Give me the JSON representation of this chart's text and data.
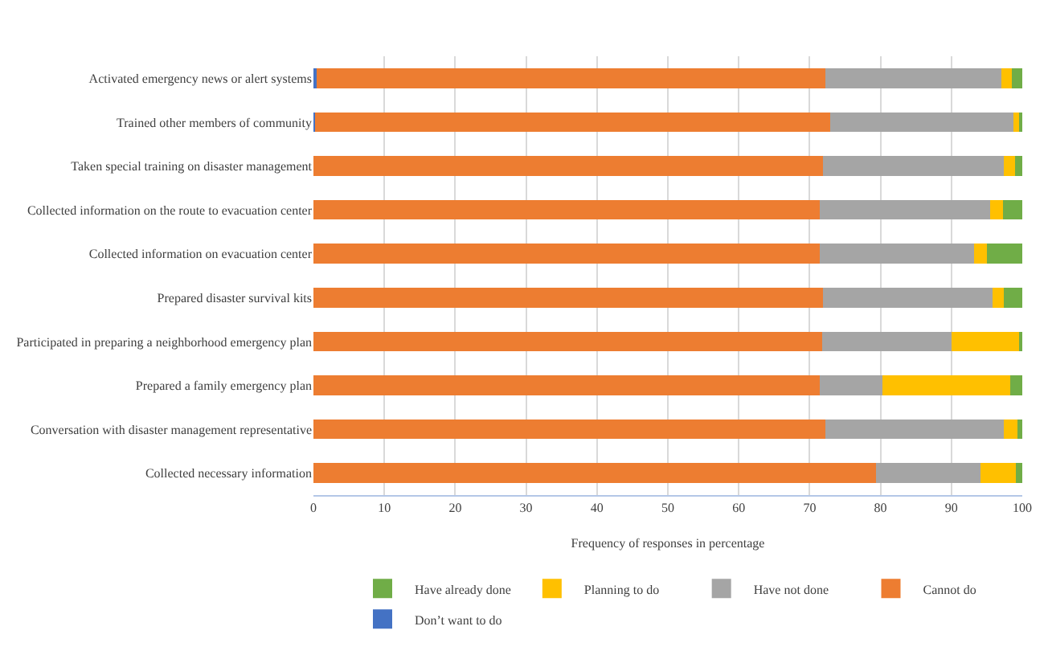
{
  "chart_data": {
    "type": "bar",
    "orientation": "horizontal",
    "stacked": true,
    "xlabel": "Frequency of responses in percentage",
    "categories": [
      "Activated emergency news or alert systems",
      "Trained other members of community",
      "Taken special training on disaster management",
      "Collected information on the route to evacuation center",
      "Collected information on evacuation center",
      "Prepared disaster survival kits",
      "Participated in preparing a neighborhood emergency plan",
      "Prepared a family emergency plan",
      "Conversation with disaster management representative",
      "Collected necessary information"
    ],
    "series": [
      {
        "name": "Don’t want to do",
        "color": "#4472c4",
        "values": [
          0.5,
          0.2,
          0,
          0,
          0,
          0,
          0,
          0,
          0,
          0
        ]
      },
      {
        "name": "Cannot do",
        "color": "#ed7d31",
        "values": [
          71.7,
          72.7,
          71.9,
          71.4,
          71.4,
          71.9,
          71.8,
          71.4,
          72.2,
          79.4
        ]
      },
      {
        "name": "Have not done",
        "color": "#a5a5a5",
        "values": [
          24.8,
          25.8,
          25.5,
          24.1,
          21.8,
          23.9,
          18.2,
          8.9,
          25.2,
          14.7
        ]
      },
      {
        "name": "Planning to do",
        "color": "#ffc000",
        "values": [
          1.5,
          0.8,
          1.6,
          1.8,
          1.8,
          1.6,
          9.5,
          18.0,
          1.9,
          5.0
        ]
      },
      {
        "name": "Have already done",
        "color": "#70ad47",
        "values": [
          1.5,
          0.5,
          1.0,
          2.7,
          5.0,
          2.6,
          0.5,
          1.7,
          0.7,
          0.9
        ]
      }
    ],
    "xlim": [
      0,
      100
    ],
    "xticks": [
      0,
      10,
      20,
      30,
      40,
      50,
      60,
      70,
      80,
      90,
      100
    ],
    "grid": "x",
    "legend": "bottom"
  }
}
